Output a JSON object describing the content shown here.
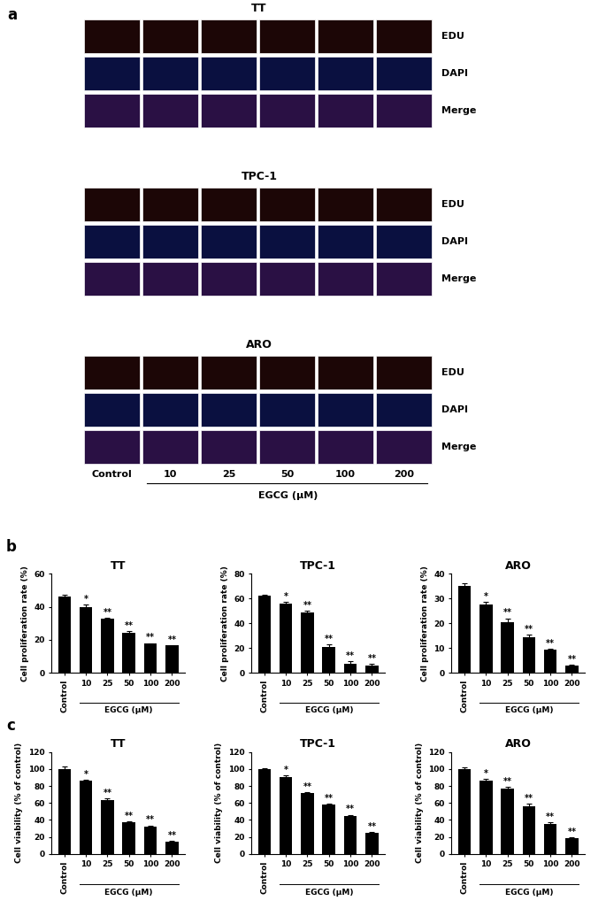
{
  "panel_labels": [
    "a",
    "b",
    "c"
  ],
  "microscopy": {
    "groups": [
      "TT",
      "TPC-1",
      "ARO"
    ],
    "channels": [
      "EDU",
      "DAPI",
      "Merge"
    ],
    "conditions": [
      "Control",
      "10",
      "25",
      "50",
      "100",
      "200"
    ],
    "xlabel": "EGCG (μM)"
  },
  "chart_data": [
    {
      "type": "bar",
      "title": "TT",
      "ylabel": "Cell proliferation rate (%)",
      "xlabel": "EGCG (μM)",
      "categories": [
        "Control",
        "10",
        "25",
        "50",
        "100",
        "200"
      ],
      "values": [
        46,
        40,
        33,
        24,
        17.5,
        16.5
      ],
      "errors": [
        1.2,
        1.2,
        0.5,
        1.0,
        0.5,
        0.3
      ],
      "significance": [
        null,
        "*",
        "**",
        "**",
        "**",
        "**"
      ],
      "color": "#000000",
      "ylim": [
        0,
        60
      ],
      "yticks": [
        0,
        20,
        40,
        60
      ]
    },
    {
      "type": "bar",
      "title": "TPC-1",
      "ylabel": "Cell proliferation rate (%)",
      "xlabel": "EGCG (μM)",
      "categories": [
        "Control",
        "10",
        "25",
        "50",
        "100",
        "200"
      ],
      "values": [
        62,
        56,
        49,
        21,
        7.5,
        5.5
      ],
      "errors": [
        1.2,
        1.0,
        1.2,
        2.0,
        1.5,
        1.5
      ],
      "significance": [
        null,
        "*",
        "**",
        "**",
        "**",
        "**"
      ],
      "color": "#000000",
      "ylim": [
        0,
        80
      ],
      "yticks": [
        0,
        20,
        40,
        60,
        80
      ]
    },
    {
      "type": "bar",
      "title": "ARO",
      "ylabel": "Cell proliferation rate (%)",
      "xlabel": "EGCG (μM)",
      "categories": [
        "Control",
        "10",
        "25",
        "50",
        "100",
        "200"
      ],
      "values": [
        35,
        27.5,
        20.5,
        14.5,
        9.5,
        3
      ],
      "errors": [
        1.2,
        1.0,
        1.5,
        0.8,
        0.3,
        0.2
      ],
      "significance": [
        null,
        "*",
        "**",
        "**",
        "**",
        "**"
      ],
      "color": "#000000",
      "ylim": [
        0,
        40
      ],
      "yticks": [
        0,
        10,
        20,
        30,
        40
      ]
    },
    {
      "type": "bar",
      "title": "TT",
      "ylabel": "Cell viability (% of control)",
      "xlabel": "EGCG (μM)",
      "categories": [
        "Control",
        "10",
        "25",
        "50",
        "100",
        "200"
      ],
      "values": [
        100,
        86,
        63,
        37,
        32,
        14
      ],
      "errors": [
        3,
        1.5,
        2,
        1.5,
        1.5,
        0.8
      ],
      "significance": [
        null,
        "*",
        "**",
        "**",
        "**",
        "**"
      ],
      "color": "#000000",
      "ylim": [
        0,
        120
      ],
      "yticks": [
        0,
        20,
        40,
        60,
        80,
        100,
        120
      ]
    },
    {
      "type": "bar",
      "title": "TPC-1",
      "ylabel": "Cell viability (% of control)",
      "xlabel": "EGCG (μM)",
      "categories": [
        "Control",
        "10",
        "25",
        "50",
        "100",
        "200"
      ],
      "values": [
        100,
        91,
        72,
        58,
        45,
        25
      ],
      "errors": [
        1.5,
        1.5,
        1,
        1,
        1,
        1
      ],
      "significance": [
        null,
        "*",
        "**",
        "**",
        "**",
        "**"
      ],
      "color": "#000000",
      "ylim": [
        0,
        120
      ],
      "yticks": [
        0,
        20,
        40,
        60,
        80,
        100,
        120
      ]
    },
    {
      "type": "bar",
      "title": "ARO",
      "ylabel": "Cell viability (% of control)",
      "xlabel": "EGCG (μM)",
      "categories": [
        "Control",
        "10",
        "25",
        "50",
        "100",
        "200"
      ],
      "values": [
        100,
        86,
        77,
        56,
        35,
        18
      ],
      "errors": [
        2,
        2.5,
        2,
        3,
        2,
        1
      ],
      "significance": [
        null,
        "*",
        "**",
        "**",
        "**",
        "**"
      ],
      "color": "#000000",
      "ylim": [
        0,
        120
      ],
      "yticks": [
        0,
        20,
        40,
        60,
        80,
        100,
        120
      ]
    }
  ]
}
